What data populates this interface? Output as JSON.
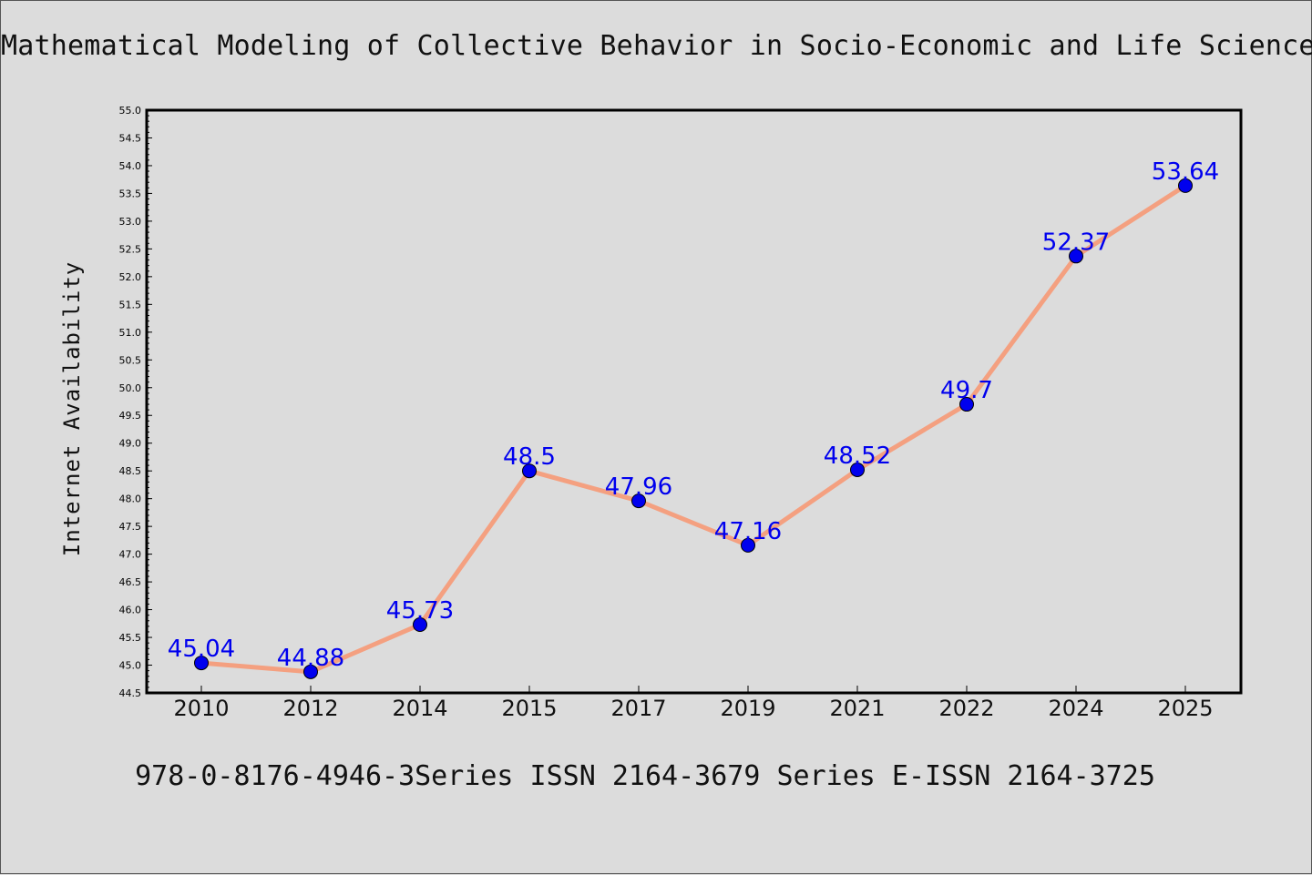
{
  "title": "Mathematical Modeling of Collective Behavior in Socio-Economic and Life Sciences",
  "footer": "978-0-8176-4946-3Series ISSN 2164-3679 Series E-ISSN 2164-3725",
  "colors": {
    "background": "#dcdcdc",
    "line": "#f4a080",
    "marker": "#0000ee",
    "data_label": "#0000ee"
  },
  "chart_data": {
    "type": "line",
    "title": "Mathematical Modeling of Collective Behavior in Socio-Economic and Life Sciences",
    "xlabel": "",
    "ylabel": "Internet Availability",
    "categories": [
      "2010",
      "2012",
      "2014",
      "2015",
      "2017",
      "2019",
      "2021",
      "2022",
      "2024",
      "2025"
    ],
    "values": [
      45.04,
      44.88,
      45.73,
      48.5,
      47.96,
      47.16,
      48.52,
      49.7,
      52.37,
      53.64
    ],
    "data_labels": [
      "45.04",
      "44.88",
      "45.73",
      "48.5",
      "47.96",
      "47.16",
      "48.52",
      "49.7",
      "52.37",
      "53.64"
    ],
    "ylim": [
      44.5,
      55.0
    ],
    "yticks": [
      "44.5",
      "45.0",
      "45.5",
      "46.0",
      "46.5",
      "47.0",
      "47.5",
      "48.0",
      "48.5",
      "49.0",
      "49.5",
      "50.0",
      "50.5",
      "51.0",
      "51.5",
      "52.0",
      "52.5",
      "53.0",
      "53.5",
      "54.0",
      "54.5",
      "55.0"
    ],
    "grid": false,
    "legend": "none"
  }
}
